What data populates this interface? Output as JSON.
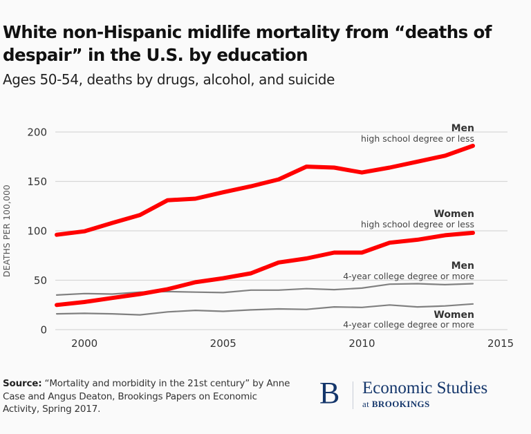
{
  "header": {
    "title": "White non-Hispanic midlife mortality from “deaths of despair” in the U.S. by education",
    "subtitle": "Ages 50-54, deaths by drugs, alcohol, and suicide"
  },
  "footer": {
    "source_label": "Source:",
    "source_text": " “Mortality and morbidity in the 21st century” by Anne Case and Angus Deaton, Brookings Papers on Economic Activity, Spring 2017.",
    "logo_letter": "B",
    "logo_main": "Economic Studies",
    "logo_at": "at",
    "logo_org": "BROOKINGS"
  },
  "chart_data": {
    "type": "line",
    "title": "White non-Hispanic midlife mortality from “deaths of despair” in the U.S. by education",
    "subtitle": "Ages 50-54, deaths by drugs, alcohol, and suicide",
    "xlabel": "",
    "ylabel": "DEATHS PER 100,000",
    "xlim": [
      1999,
      2015
    ],
    "ylim": [
      0,
      200
    ],
    "xticks": [
      2000,
      2005,
      2010,
      2015
    ],
    "yticks": [
      0,
      50,
      100,
      150,
      200
    ],
    "grid": "horizontal",
    "legend": "inline-labels-right",
    "x": [
      1999,
      2000,
      2001,
      2002,
      2003,
      2004,
      2005,
      2006,
      2007,
      2008,
      2009,
      2010,
      2011,
      2012,
      2013,
      2014
    ],
    "series": [
      {
        "name": "Men",
        "detail": "high school degree or less",
        "color": "#ff0000",
        "emphasis": "thick",
        "values": [
          96,
          99.5,
          108,
          116,
          131,
          132.5,
          139,
          145,
          152,
          165,
          164,
          159,
          164,
          170,
          176,
          186
        ]
      },
      {
        "name": "Women",
        "detail": "high school degree or less",
        "color": "#ff0000",
        "emphasis": "thick",
        "values": [
          25,
          28,
          32,
          36,
          41,
          48,
          52,
          57,
          68,
          72,
          78,
          78,
          88,
          91,
          95.5,
          98
        ]
      },
      {
        "name": "Men",
        "detail": "4-year college degree or more",
        "color": "#808080",
        "emphasis": "thin",
        "values": [
          35,
          36.5,
          36,
          38,
          38.5,
          38,
          37.5,
          40,
          40,
          41.5,
          40.5,
          42,
          46,
          46.5,
          45.5,
          46.5
        ]
      },
      {
        "name": "Women",
        "detail": "4-year college degree or more",
        "color": "#808080",
        "emphasis": "thin",
        "values": [
          16,
          16.5,
          16,
          15,
          18,
          19.5,
          18.5,
          20,
          21,
          20.5,
          23,
          22.5,
          25,
          23,
          24,
          26
        ]
      }
    ]
  }
}
